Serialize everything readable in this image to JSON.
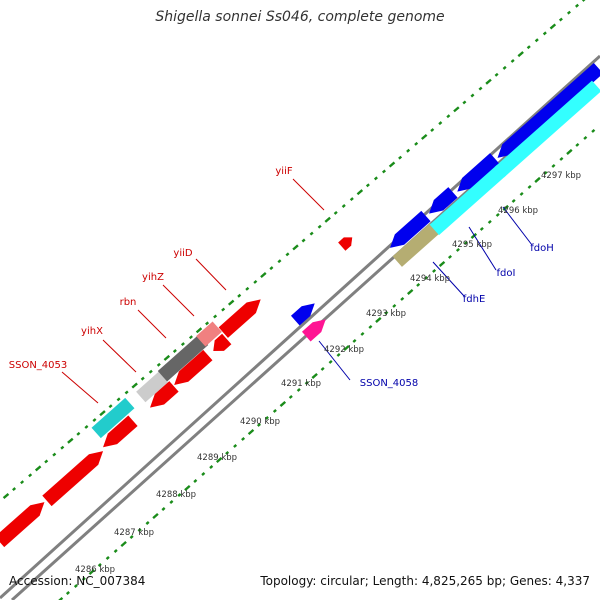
{
  "title": "Shigella sonnei Ss046, complete genome",
  "accession": {
    "label": "Accession:",
    "value": "NC_007384"
  },
  "summary": {
    "topology_label": "Topology:",
    "topology": "circular",
    "length_label": "Length:",
    "length": "4,825,265 bp",
    "genes_label": "Genes:",
    "genes": "4,337"
  },
  "colors": {
    "backbone": "#808080",
    "tick": "#1a8c1a",
    "label_red": "#cc0000",
    "label_blue": "#0000aa",
    "red": "#ee0000",
    "blue": "#0000ee",
    "cyan": "#33ffff",
    "teal": "#22cccc",
    "gray_light": "#cccccc",
    "gray_dark": "#666666",
    "pink": "#f08080",
    "magenta": "#ff1493",
    "olive": "#b5ad72"
  },
  "kbp_ticks": [
    "4286 kbp",
    "4287 kbp",
    "4288 kbp",
    "4289 kbp",
    "4290 kbp",
    "4291 kbp",
    "4292 kbp",
    "4293 kbp",
    "4294 kbp",
    "4295 kbp",
    "4296 kbp",
    "4297 kbp"
  ],
  "gene_labels": [
    {
      "text": "SSON_4053",
      "color": "label_red"
    },
    {
      "text": "yihX",
      "color": "label_red"
    },
    {
      "text": "rbn",
      "color": "label_red"
    },
    {
      "text": "yihZ",
      "color": "label_red"
    },
    {
      "text": "yiiD",
      "color": "label_red"
    },
    {
      "text": "yiiF",
      "color": "label_red"
    },
    {
      "text": "SSON_4058",
      "color": "label_blue"
    },
    {
      "text": "fdhE",
      "color": "label_blue"
    },
    {
      "text": "fdoI",
      "color": "label_blue"
    },
    {
      "text": "fdoH",
      "color": "label_blue"
    }
  ]
}
